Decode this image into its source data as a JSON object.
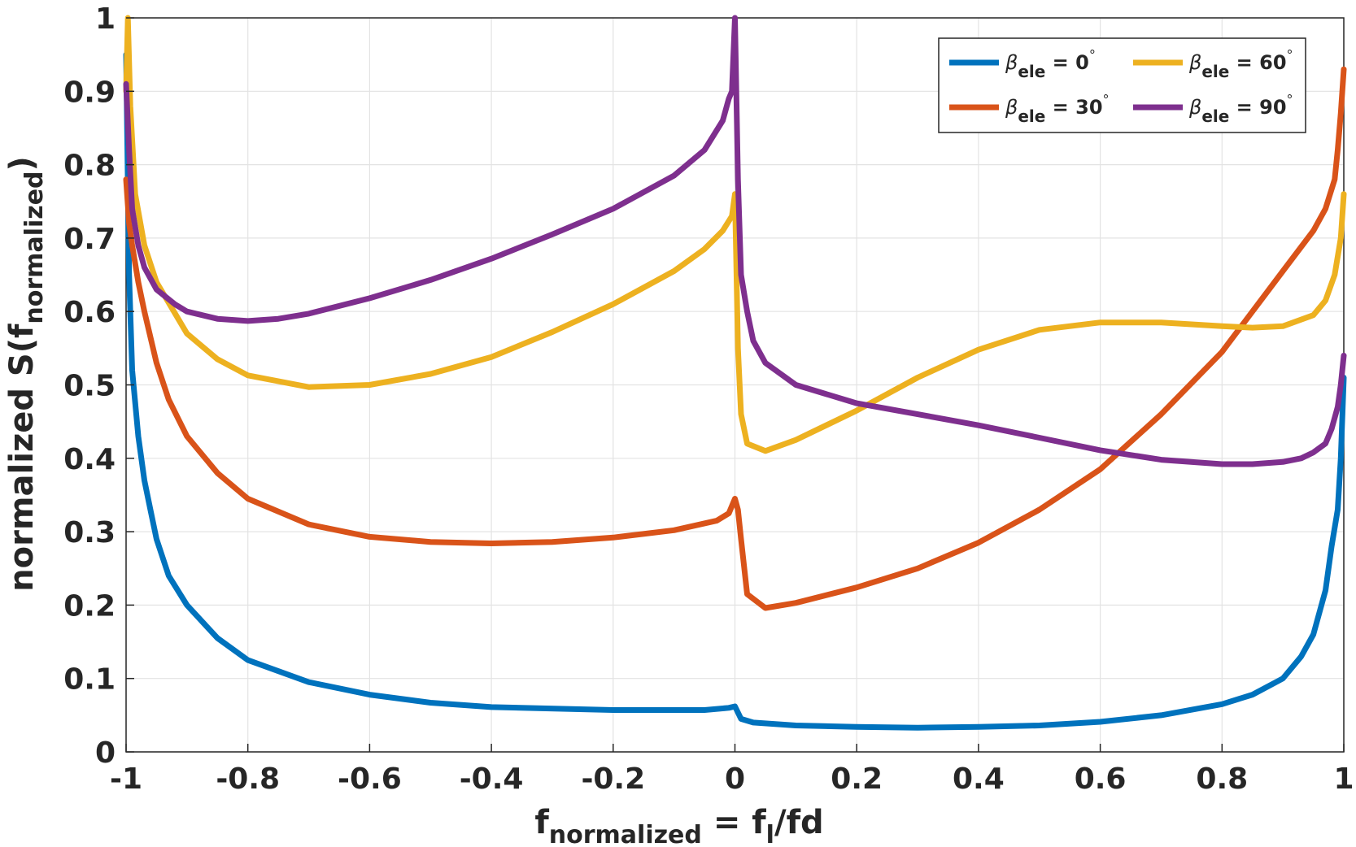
{
  "chart_data": {
    "type": "line",
    "xlabel_main": "f",
    "xlabel_sub": "normalized",
    "xlabel_rest": " = f",
    "xlabel_sub2": "l",
    "xlabel_tail": "/fd",
    "ylabel_main": "normalized S(f",
    "ylabel_sub": "normalized",
    "ylabel_tail": ")",
    "xlim": [
      -1,
      1
    ],
    "ylim": [
      0,
      1
    ],
    "grid": true,
    "legend_position": "top-right",
    "x_ticks": [
      -1,
      -0.8,
      -0.6,
      -0.4,
      -0.2,
      0,
      0.2,
      0.4,
      0.6,
      0.8,
      1
    ],
    "x_tick_labels": [
      "-1",
      "-0.8",
      "-0.6",
      "-0.4",
      "-0.2",
      "0",
      "0.2",
      "0.4",
      "0.6",
      "0.8",
      "1"
    ],
    "y_ticks": [
      0,
      0.1,
      0.2,
      0.3,
      0.4,
      0.5,
      0.6,
      0.7,
      0.8,
      0.9,
      1
    ],
    "y_tick_labels": [
      "0",
      "0.1",
      "0.2",
      "0.3",
      "0.4",
      "0.5",
      "0.6",
      "0.7",
      "0.8",
      "0.9",
      "1"
    ],
    "series": [
      {
        "name": "β_ele = 0°",
        "legend_symbol": "β",
        "legend_sub": "ele",
        "legend_value": " = 0",
        "legend_unit": "°",
        "color": "#0072BD",
        "x": [
          -1,
          -0.995,
          -0.99,
          -0.98,
          -0.97,
          -0.96,
          -0.95,
          -0.93,
          -0.9,
          -0.85,
          -0.8,
          -0.7,
          -0.6,
          -0.5,
          -0.4,
          -0.2,
          -0.05,
          -0.01,
          0,
          0.01,
          0.03,
          0.1,
          0.2,
          0.3,
          0.4,
          0.5,
          0.6,
          0.7,
          0.8,
          0.85,
          0.9,
          0.93,
          0.95,
          0.97,
          0.98,
          0.99,
          0.995,
          1
        ],
        "values": [
          0.95,
          0.65,
          0.52,
          0.43,
          0.37,
          0.33,
          0.29,
          0.24,
          0.2,
          0.155,
          0.125,
          0.095,
          0.078,
          0.067,
          0.061,
          0.057,
          0.057,
          0.06,
          0.062,
          0.045,
          0.04,
          0.036,
          0.034,
          0.033,
          0.034,
          0.036,
          0.041,
          0.05,
          0.065,
          0.078,
          0.1,
          0.13,
          0.16,
          0.22,
          0.28,
          0.33,
          0.4,
          0.51
        ]
      },
      {
        "name": "β_ele = 30°",
        "legend_symbol": "β",
        "legend_sub": "ele",
        "legend_value": " = 30",
        "legend_unit": "°",
        "color": "#D95319",
        "x": [
          -1,
          -0.995,
          -0.99,
          -0.98,
          -0.97,
          -0.95,
          -0.93,
          -0.9,
          -0.85,
          -0.8,
          -0.7,
          -0.6,
          -0.5,
          -0.4,
          -0.3,
          -0.2,
          -0.1,
          -0.03,
          -0.01,
          0,
          0.005,
          0.01,
          0.02,
          0.05,
          0.1,
          0.2,
          0.3,
          0.4,
          0.5,
          0.6,
          0.7,
          0.8,
          0.85,
          0.9,
          0.95,
          0.97,
          0.985,
          0.99,
          0.995,
          1
        ],
        "values": [
          0.78,
          0.72,
          0.69,
          0.64,
          0.6,
          0.53,
          0.48,
          0.43,
          0.38,
          0.345,
          0.31,
          0.293,
          0.286,
          0.284,
          0.286,
          0.292,
          0.302,
          0.315,
          0.325,
          0.345,
          0.33,
          0.29,
          0.215,
          0.196,
          0.203,
          0.224,
          0.25,
          0.285,
          0.33,
          0.385,
          0.46,
          0.545,
          0.6,
          0.655,
          0.71,
          0.74,
          0.78,
          0.82,
          0.87,
          0.93
        ]
      },
      {
        "name": "β_ele = 60°",
        "legend_symbol": "β",
        "legend_sub": "ele",
        "legend_value": " = 60",
        "legend_unit": "°",
        "color": "#EDB120",
        "x": [
          -1,
          -0.997,
          -0.993,
          -0.985,
          -0.97,
          -0.95,
          -0.9,
          -0.85,
          -0.8,
          -0.7,
          -0.6,
          -0.5,
          -0.4,
          -0.3,
          -0.2,
          -0.1,
          -0.05,
          -0.02,
          -0.005,
          0,
          0.005,
          0.01,
          0.02,
          0.05,
          0.1,
          0.2,
          0.3,
          0.4,
          0.5,
          0.6,
          0.7,
          0.8,
          0.85,
          0.9,
          0.95,
          0.97,
          0.985,
          0.995,
          1
        ],
        "values": [
          0.9,
          1.0,
          0.88,
          0.76,
          0.69,
          0.64,
          0.57,
          0.535,
          0.513,
          0.497,
          0.5,
          0.515,
          0.538,
          0.572,
          0.61,
          0.655,
          0.685,
          0.71,
          0.73,
          0.76,
          0.55,
          0.46,
          0.42,
          0.41,
          0.425,
          0.465,
          0.51,
          0.548,
          0.575,
          0.585,
          0.585,
          0.58,
          0.578,
          0.58,
          0.595,
          0.615,
          0.65,
          0.7,
          0.76
        ]
      },
      {
        "name": "β_ele = 90°",
        "legend_symbol": "β",
        "legend_sub": "ele",
        "legend_value": " = 90",
        "legend_unit": "°",
        "color": "#7E2F8E",
        "x": [
          -1,
          -0.995,
          -0.99,
          -0.98,
          -0.97,
          -0.95,
          -0.92,
          -0.9,
          -0.85,
          -0.8,
          -0.75,
          -0.7,
          -0.6,
          -0.5,
          -0.4,
          -0.3,
          -0.2,
          -0.1,
          -0.05,
          -0.02,
          -0.01,
          -0.005,
          0,
          0.005,
          0.01,
          0.02,
          0.03,
          0.05,
          0.1,
          0.2,
          0.3,
          0.4,
          0.5,
          0.6,
          0.7,
          0.8,
          0.85,
          0.9,
          0.93,
          0.95,
          0.97,
          0.98,
          0.99,
          0.995,
          1
        ],
        "values": [
          0.91,
          0.82,
          0.74,
          0.69,
          0.66,
          0.63,
          0.61,
          0.6,
          0.59,
          0.587,
          0.59,
          0.597,
          0.618,
          0.643,
          0.672,
          0.705,
          0.74,
          0.785,
          0.82,
          0.86,
          0.89,
          0.9,
          1.0,
          0.78,
          0.65,
          0.6,
          0.56,
          0.53,
          0.5,
          0.475,
          0.46,
          0.445,
          0.428,
          0.411,
          0.398,
          0.392,
          0.392,
          0.395,
          0.4,
          0.408,
          0.42,
          0.44,
          0.47,
          0.5,
          0.54
        ]
      }
    ]
  }
}
